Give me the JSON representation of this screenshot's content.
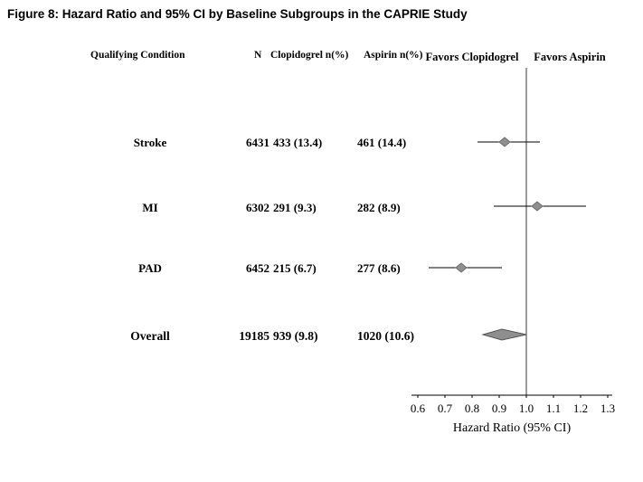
{
  "title": "Figure 8: Hazard Ratio and 95% CI by Baseline Subgroups in the CAPRIE Study",
  "table": {
    "headers": {
      "condition": "Qualifying Condition",
      "n": "N",
      "clopidogrel": "Clopidogrel n(%)",
      "aspirin": "Aspirin n(%)"
    },
    "rows": [
      {
        "condition": "Stroke",
        "n": "6431",
        "clopidogrel": "433 (13.4)",
        "aspirin": "461 (14.4)"
      },
      {
        "condition": "MI",
        "n": "6302",
        "clopidogrel": "291 (9.3)",
        "aspirin": "282 (8.9)"
      },
      {
        "condition": "PAD",
        "n": "6452",
        "clopidogrel": "215 (6.7)",
        "aspirin": "277 (8.6)"
      },
      {
        "condition": "Overall",
        "n": "19185",
        "clopidogrel": "939 (9.8)",
        "aspirin": "1020 (10.6)"
      }
    ]
  },
  "chart_data": {
    "type": "forest",
    "title": "Figure 8: Hazard Ratio and 95% CI by Baseline Subgroups in the CAPRIE Study",
    "xlabel": "Hazard Ratio (95% CI)",
    "favors_left": "Favors Clopidogrel",
    "favors_right": "Favors Aspirin",
    "xlim": [
      0.6,
      1.3
    ],
    "x_ticks": [
      0.6,
      0.7,
      0.8,
      0.9,
      1.0,
      1.1,
      1.2,
      1.3
    ],
    "reference_line": 1.0,
    "grid": false,
    "series": [
      {
        "name": "Stroke",
        "hr": 0.92,
        "ci_low": 0.82,
        "ci_high": 1.05,
        "marker": "diamond-small"
      },
      {
        "name": "MI",
        "hr": 1.04,
        "ci_low": 0.88,
        "ci_high": 1.22,
        "marker": "diamond-small"
      },
      {
        "name": "PAD",
        "hr": 0.76,
        "ci_low": 0.64,
        "ci_high": 0.91,
        "marker": "diamond-small"
      },
      {
        "name": "Overall",
        "hr": 0.91,
        "ci_low": 0.84,
        "ci_high": 1.0,
        "marker": "diamond-large"
      }
    ],
    "marker_color": "#8f8f8f",
    "marker_edge_color": "#6e6e6e",
    "line_color": "#000000",
    "reference_line_color": "#3a3a3a"
  }
}
